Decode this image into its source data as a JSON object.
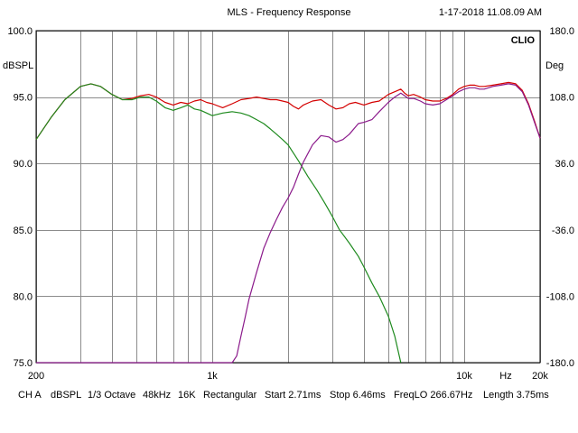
{
  "chart_data": {
    "type": "line",
    "title": "MLS - Frequency Response",
    "timestamp": "1-17-2018 11.08.09 AM",
    "brand": "CLIO",
    "ylabel_left": "dBSPL",
    "ylabel_right": "Deg",
    "xlabel": "Hz",
    "x_scale": "log",
    "xlim": [
      200,
      20000
    ],
    "ylim": [
      75,
      100
    ],
    "ylim_right": [
      -180,
      180
    ],
    "grid": true,
    "x_ticks": [
      200,
      1000,
      10000,
      20000
    ],
    "x_tick_labels": [
      "200",
      "1k",
      "10k",
      "20k"
    ],
    "x_grid": [
      200,
      300,
      400,
      500,
      600,
      700,
      800,
      900,
      1000,
      2000,
      3000,
      4000,
      5000,
      6000,
      7000,
      8000,
      9000,
      10000,
      20000
    ],
    "y_ticks": [
      100,
      95,
      90,
      85,
      80,
      75
    ],
    "y_tick_labels": [
      "100.0",
      "95.0",
      "90.0",
      "85.0",
      "80.0",
      "75.0"
    ],
    "y_ticks_right": [
      180,
      108,
      36,
      -36,
      -108,
      -180
    ],
    "y_tick_labels_right": [
      "180.0",
      "108.0",
      "36.0",
      "-36.0",
      "-108.0",
      "-180.0"
    ],
    "series": [
      {
        "color": "#d40000",
        "x": [
          200,
          230,
          260,
          300,
          330,
          360,
          400,
          440,
          480,
          520,
          560,
          600,
          650,
          700,
          750,
          800,
          850,
          900,
          950,
          1000,
          1100,
          1200,
          1300,
          1400,
          1500,
          1600,
          1700,
          1800,
          1900,
          2000,
          2100,
          2200,
          2300,
          2500,
          2700,
          2900,
          3100,
          3300,
          3500,
          3700,
          4000,
          4300,
          4600,
          5000,
          5300,
          5600,
          5800,
          6000,
          6300,
          6700,
          7000,
          7500,
          8000,
          8500,
          9000,
          9500,
          10000,
          10500,
          11000,
          11500,
          12000,
          13000,
          14000,
          15000,
          16000,
          17000,
          18000,
          19000,
          20000
        ],
        "values": [
          91.8,
          93.5,
          94.8,
          95.8,
          96.0,
          95.8,
          95.2,
          94.8,
          94.9,
          95.1,
          95.2,
          95.0,
          94.6,
          94.4,
          94.6,
          94.5,
          94.7,
          94.8,
          94.6,
          94.5,
          94.2,
          94.5,
          94.8,
          94.9,
          95.0,
          94.9,
          94.8,
          94.8,
          94.7,
          94.6,
          94.3,
          94.1,
          94.4,
          94.7,
          94.8,
          94.4,
          94.1,
          94.2,
          94.5,
          94.6,
          94.4,
          94.6,
          94.7,
          95.2,
          95.4,
          95.6,
          95.3,
          95.1,
          95.2,
          95.0,
          94.8,
          94.7,
          94.7,
          94.9,
          95.2,
          95.6,
          95.8,
          95.9,
          95.9,
          95.8,
          95.8,
          95.9,
          96.0,
          96.1,
          96.0,
          95.5,
          94.5,
          93.2,
          91.9
        ]
      },
      {
        "color": "#1e8a1e",
        "x": [
          200,
          230,
          260,
          300,
          330,
          360,
          400,
          440,
          480,
          520,
          560,
          600,
          650,
          700,
          750,
          800,
          850,
          900,
          950,
          1000,
          1100,
          1200,
          1300,
          1400,
          1500,
          1600,
          1700,
          1800,
          1900,
          2000,
          2200,
          2400,
          2600,
          2800,
          3000,
          3200,
          3500,
          3800,
          4000,
          4300,
          4600,
          5000,
          5300,
          5600
        ],
        "values": [
          91.8,
          93.5,
          94.8,
          95.8,
          96.0,
          95.8,
          95.2,
          94.8,
          94.8,
          95.0,
          95.0,
          94.7,
          94.2,
          94.0,
          94.2,
          94.4,
          94.1,
          94.0,
          93.8,
          93.6,
          93.8,
          93.9,
          93.8,
          93.6,
          93.3,
          93.0,
          92.6,
          92.2,
          91.8,
          91.4,
          90.2,
          89.0,
          88.0,
          87.0,
          86.0,
          85.0,
          84.0,
          83.0,
          82.2,
          81.0,
          80.0,
          78.5,
          77.0,
          75.0
        ]
      },
      {
        "color": "#8b1a8b",
        "x": [
          200,
          300,
          400,
          500,
          600,
          700,
          800,
          900,
          1000,
          1100,
          1200,
          1250,
          1300,
          1350,
          1400,
          1500,
          1600,
          1700,
          1800,
          1900,
          2000,
          2100,
          2200,
          2300,
          2500,
          2700,
          2900,
          3100,
          3300,
          3500,
          3800,
          4000,
          4300,
          4600,
          5000,
          5300,
          5600,
          5800,
          6000,
          6300,
          6700,
          7000,
          7500,
          8000,
          8500,
          9000,
          9500,
          10000,
          10500,
          11000,
          11500,
          12000,
          13000,
          14000,
          15000,
          16000,
          17000,
          18000,
          19000,
          20000
        ],
        "values": [
          75.0,
          75.0,
          75.0,
          75.0,
          75.0,
          75.0,
          75.0,
          75.0,
          75.0,
          75.0,
          75.0,
          75.5,
          77.0,
          78.4,
          79.8,
          81.8,
          83.6,
          84.8,
          85.8,
          86.7,
          87.4,
          88.2,
          89.2,
          90.1,
          91.4,
          92.1,
          92.0,
          91.6,
          91.8,
          92.2,
          93.0,
          93.1,
          93.3,
          93.9,
          94.6,
          95.0,
          95.3,
          95.1,
          94.9,
          94.9,
          94.7,
          94.5,
          94.4,
          94.5,
          94.8,
          95.1,
          95.4,
          95.6,
          95.7,
          95.7,
          95.6,
          95.6,
          95.8,
          95.9,
          96.0,
          95.9,
          95.4,
          94.4,
          93.1,
          91.9
        ]
      }
    ],
    "footer": {
      "channel": "CH A",
      "unit": "dBSPL",
      "smoothing": "1/3 Octave",
      "rate": "48kHz",
      "size": "16K",
      "window": "Rectangular",
      "start": "Start 2.71ms",
      "stop": "Stop 6.46ms",
      "freqlo": "FreqLO 266.67Hz",
      "length": "Length 3.75ms"
    }
  }
}
